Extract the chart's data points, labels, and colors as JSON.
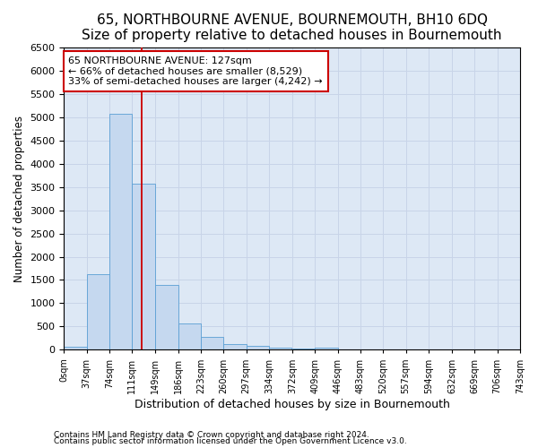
{
  "title": "65, NORTHBOURNE AVENUE, BOURNEMOUTH, BH10 6DQ",
  "subtitle": "Size of property relative to detached houses in Bournemouth",
  "xlabel": "Distribution of detached houses by size in Bournemouth",
  "ylabel": "Number of detached properties",
  "footnote1": "Contains HM Land Registry data © Crown copyright and database right 2024.",
  "footnote2": "Contains public sector information licensed under the Open Government Licence v3.0.",
  "annotation_title": "65 NORTHBOURNE AVENUE: 127sqm",
  "annotation_line1": "← 66% of detached houses are smaller (8,529)",
  "annotation_line2": "33% of semi-detached houses are larger (4,242) →",
  "bar_edges": [
    0,
    37,
    74,
    111,
    149,
    186,
    223,
    260,
    297,
    334,
    372,
    409,
    446,
    483,
    520,
    557,
    594,
    632,
    669,
    706,
    743
  ],
  "bar_heights": [
    75,
    1625,
    5075,
    3575,
    1400,
    575,
    280,
    130,
    90,
    55,
    30,
    55,
    0,
    0,
    0,
    0,
    0,
    0,
    0,
    0
  ],
  "bar_color": "#c5d8ef",
  "bar_edge_color": "#5a9fd4",
  "vline_x": 127,
  "vline_color": "#cc0000",
  "xlim": [
    0,
    743
  ],
  "ylim": [
    0,
    6500
  ],
  "grid_color": "#c8d4e8",
  "bg_color": "#dde8f5",
  "annotation_box_color": "#cc0000",
  "annotation_fontsize": 8,
  "title_fontsize": 11,
  "subtitle_fontsize": 9.5,
  "ylabel_fontsize": 8.5,
  "xlabel_fontsize": 9,
  "ytick_fontsize": 8,
  "xtick_fontsize": 7
}
